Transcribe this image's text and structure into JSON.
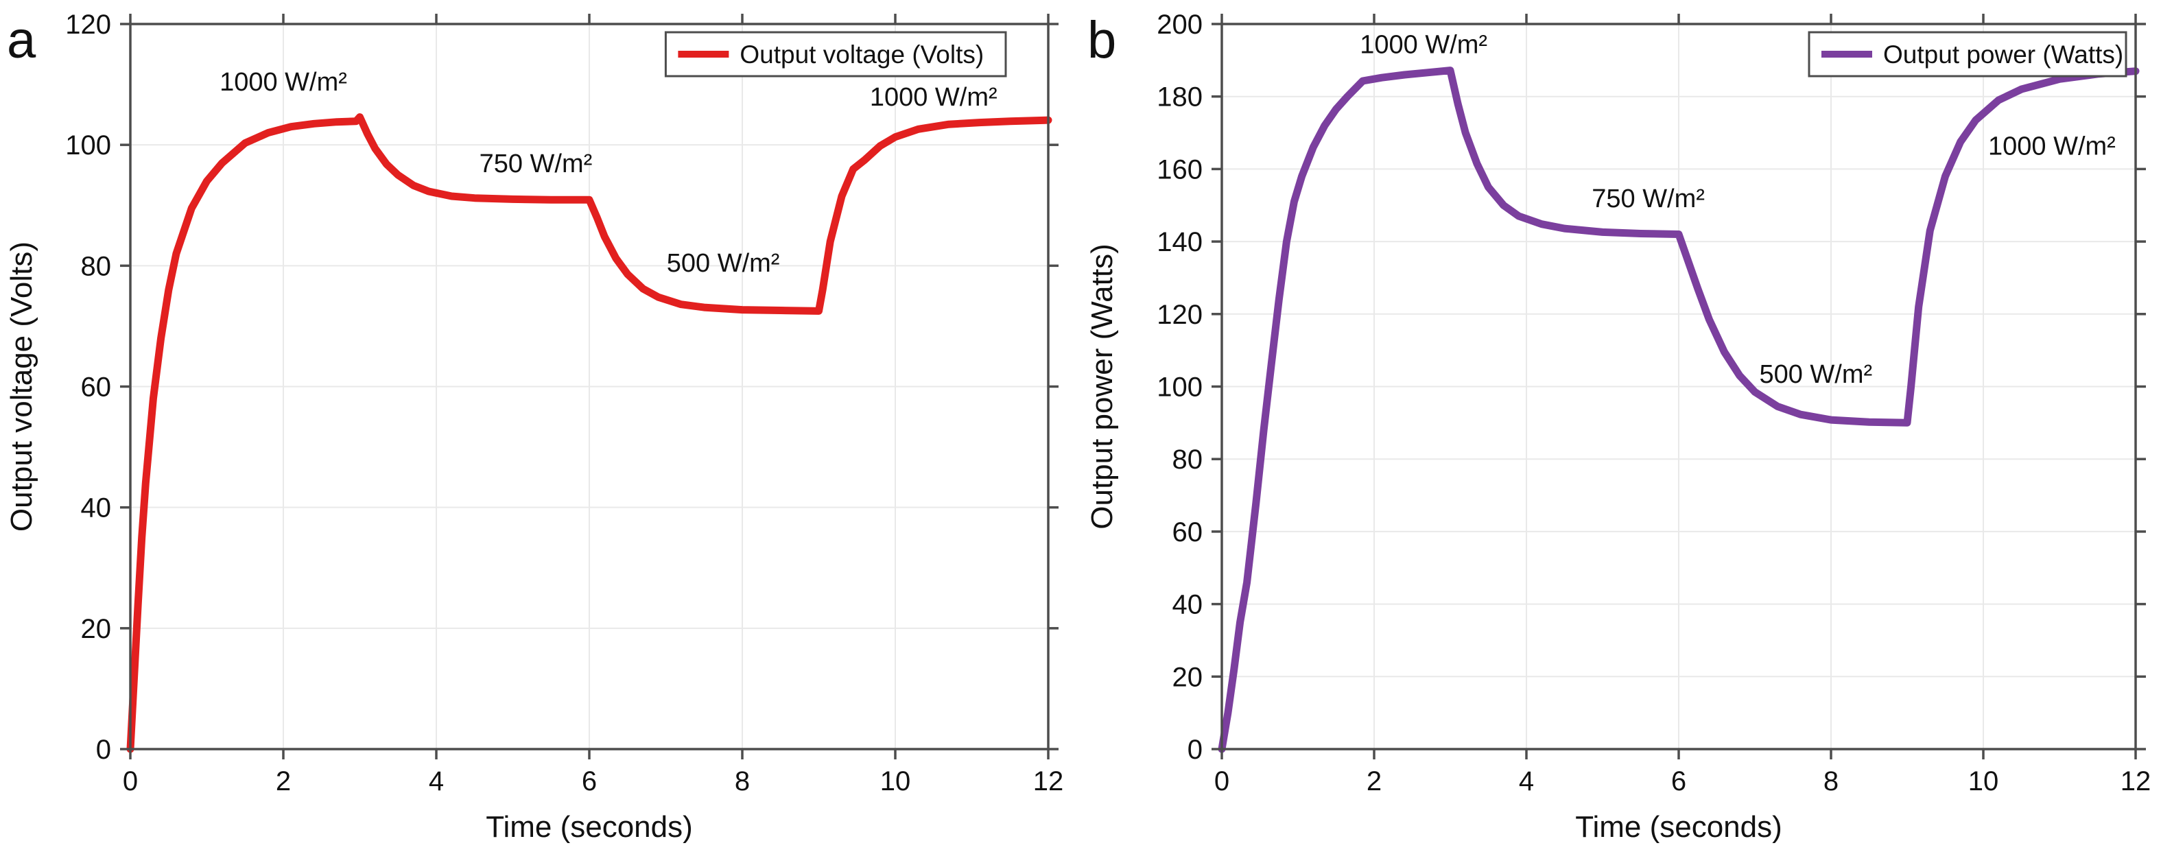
{
  "figure": {
    "background": "#ffffff",
    "frame_color": "#4d4d4d",
    "grid_color": "#e9e9e9",
    "text_color": "#111111",
    "panel_letter_color": "#2b2b2b"
  },
  "chart_data": [
    {
      "type": "line",
      "panel_label": "a",
      "xlabel": "Time (seconds)",
      "ylabel": "Output voltage (Volts)",
      "xlim": [
        0,
        12
      ],
      "ylim": [
        0,
        120
      ],
      "xticks": [
        0,
        2,
        4,
        6,
        8,
        10,
        12
      ],
      "yticks": [
        0,
        20,
        40,
        60,
        80,
        100,
        120
      ],
      "grid": true,
      "legend": {
        "position": "top-right",
        "entries": [
          {
            "label": "Output voltage (Volts)",
            "color": "#e2201f"
          }
        ]
      },
      "series": [
        {
          "name": "Output voltage (Volts)",
          "color": "#e2201f",
          "x": [
            0,
            0.05,
            0.1,
            0.15,
            0.2,
            0.3,
            0.4,
            0.5,
            0.6,
            0.8,
            1.0,
            1.2,
            1.5,
            1.8,
            2.1,
            2.4,
            2.7,
            2.95,
            3.0,
            3.1,
            3.2,
            3.35,
            3.5,
            3.7,
            3.9,
            4.2,
            4.5,
            5.0,
            5.5,
            6.0,
            6.1,
            6.2,
            6.35,
            6.5,
            6.7,
            6.9,
            7.2,
            7.5,
            8.0,
            8.5,
            9.0,
            9.05,
            9.15,
            9.3,
            9.45,
            9.6,
            9.8,
            10.0,
            10.3,
            10.7,
            11.1,
            11.5,
            12.0
          ],
          "y": [
            0,
            12,
            24,
            35,
            44,
            58,
            68,
            76,
            82,
            89.5,
            94,
            97,
            100.3,
            102,
            103,
            103.5,
            103.8,
            103.9,
            104.6,
            101.8,
            99.4,
            96.8,
            95.0,
            93.3,
            92.3,
            91.5,
            91.2,
            91.0,
            90.9,
            90.9,
            88.0,
            84.8,
            81.2,
            78.6,
            76.2,
            74.8,
            73.6,
            73.1,
            72.7,
            72.6,
            72.5,
            76.0,
            84.0,
            91.5,
            96.0,
            97.5,
            99.8,
            101.3,
            102.6,
            103.4,
            103.7,
            103.9,
            104.1
          ]
        }
      ],
      "annotations": [
        {
          "text": "1000 W/m²",
          "x": 2.0,
          "y": 109
        },
        {
          "text": "750 W/m²",
          "x": 5.3,
          "y": 95.5
        },
        {
          "text": "500 W/m²",
          "x": 7.75,
          "y": 79
        },
        {
          "text": "1000 W/m²",
          "x": 10.5,
          "y": 106.5
        }
      ]
    },
    {
      "type": "line",
      "panel_label": "b",
      "xlabel": "Time (seconds)",
      "ylabel": "Output power (Watts)",
      "xlim": [
        0,
        12
      ],
      "ylim": [
        0,
        200
      ],
      "xticks": [
        0,
        2,
        4,
        6,
        8,
        10,
        12
      ],
      "yticks": [
        0,
        20,
        40,
        60,
        80,
        100,
        120,
        140,
        160,
        180,
        200
      ],
      "grid": true,
      "legend": {
        "position": "top-right",
        "entries": [
          {
            "label": "Output power (Watts)",
            "color": "#7b3f9e"
          }
        ]
      },
      "series": [
        {
          "name": "Output power (Watts)",
          "color": "#7b3f9e",
          "x": [
            0,
            0.08,
            0.16,
            0.24,
            0.33,
            0.45,
            0.55,
            0.65,
            0.75,
            0.85,
            0.95,
            1.05,
            1.2,
            1.35,
            1.5,
            1.65,
            1.85,
            2.1,
            2.4,
            2.7,
            3.0,
            3.1,
            3.2,
            3.35,
            3.5,
            3.7,
            3.9,
            4.2,
            4.5,
            5.0,
            5.5,
            6.0,
            6.1,
            6.25,
            6.4,
            6.6,
            6.8,
            7.0,
            7.3,
            7.6,
            8.0,
            8.5,
            9.0,
            9.05,
            9.15,
            9.3,
            9.5,
            9.7,
            9.9,
            10.2,
            10.5,
            11.0,
            11.5,
            12.0
          ],
          "y": [
            0,
            10,
            22,
            35,
            46,
            68,
            88,
            106,
            124,
            140,
            151,
            158,
            166,
            172,
            176.5,
            180,
            184.3,
            185.2,
            186,
            186.6,
            187.2,
            178,
            170,
            161.5,
            155,
            150,
            147,
            144.8,
            143.6,
            142.6,
            142.2,
            142.0,
            136,
            127,
            118.5,
            109.5,
            103,
            98.5,
            94.5,
            92.3,
            90.8,
            90.2,
            90.0,
            100,
            122,
            143,
            158,
            167.5,
            173.5,
            179,
            182,
            184.8,
            186.2,
            187.0
          ]
        }
      ],
      "annotations": [
        {
          "text": "1000 W/m²",
          "x": 2.65,
          "y": 192
        },
        {
          "text": "750 W/m²",
          "x": 5.6,
          "y": 149.5
        },
        {
          "text": "500 W/m²",
          "x": 7.8,
          "y": 101
        },
        {
          "text": "1000 W/m²",
          "x": 10.9,
          "y": 164
        }
      ]
    }
  ]
}
